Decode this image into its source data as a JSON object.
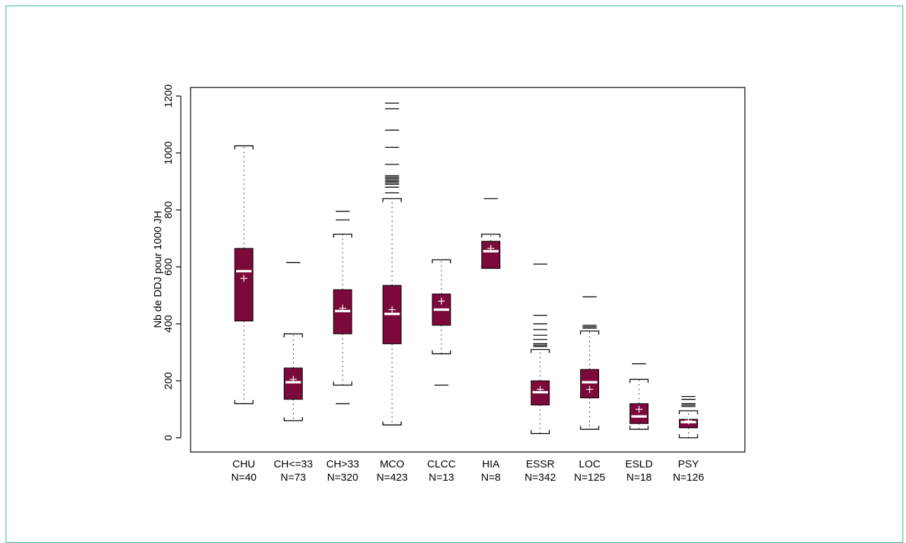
{
  "chart_data": {
    "type": "boxplot",
    "title": "",
    "xlabel": "",
    "ylabel": "Nb de DDJ pour 1000 JH",
    "ylim": [
      -50,
      1230
    ],
    "yticks": [
      0,
      200,
      400,
      600,
      800,
      1000,
      1200
    ],
    "grid": false,
    "box_color": "#7b0a3a",
    "marker_color": "#ffffff",
    "categories": [
      {
        "name": "CHU",
        "n_label": "N=40",
        "whisker_low": 120,
        "q1": 410,
        "median": 585,
        "q3": 665,
        "whisker_high": 1025,
        "mean": 560,
        "outliers": []
      },
      {
        "name": "CH<=33",
        "n_label": "N=73",
        "whisker_low": 60,
        "q1": 135,
        "median": 195,
        "q3": 245,
        "whisker_high": 365,
        "mean": 205,
        "outliers": [
          615
        ]
      },
      {
        "name": "CH>33",
        "n_label": "N=320",
        "whisker_low": 185,
        "q1": 365,
        "median": 445,
        "q3": 520,
        "whisker_high": 715,
        "mean": 455,
        "outliers": [
          120,
          765,
          795
        ]
      },
      {
        "name": "MCO",
        "n_label": "N=423",
        "whisker_low": 45,
        "q1": 330,
        "median": 435,
        "q3": 535,
        "whisker_high": 840,
        "mean": 450,
        "outliers": [
          860,
          880,
          890,
          895,
          900,
          905,
          910,
          915,
          920,
          960,
          1020,
          1080,
          1155,
          1175
        ]
      },
      {
        "name": "CLCC",
        "n_label": "N=13",
        "whisker_low": 295,
        "q1": 395,
        "median": 450,
        "q3": 505,
        "whisker_high": 625,
        "mean": 480,
        "outliers": [
          185
        ]
      },
      {
        "name": "HIA",
        "n_label": "N=8",
        "whisker_low": 595,
        "q1": 595,
        "median": 655,
        "q3": 690,
        "whisker_high": 715,
        "mean": 665,
        "outliers": [
          840
        ]
      },
      {
        "name": "ESSR",
        "n_label": "N=342",
        "whisker_low": 15,
        "q1": 115,
        "median": 160,
        "q3": 200,
        "whisker_high": 310,
        "mean": 170,
        "outliers": [
          320,
          325,
          330,
          345,
          360,
          380,
          400,
          430,
          610
        ]
      },
      {
        "name": "LOC",
        "n_label": "N=125",
        "whisker_low": 30,
        "q1": 140,
        "median": 195,
        "q3": 240,
        "whisker_high": 375,
        "mean": 170,
        "outliers": [
          385,
          390,
          395,
          495
        ]
      },
      {
        "name": "ESLD",
        "n_label": "N=18",
        "whisker_low": 30,
        "q1": 50,
        "median": 75,
        "q3": 120,
        "whisker_high": 205,
        "mean": 100,
        "outliers": [
          260
        ]
      },
      {
        "name": "PSY",
        "n_label": "N=126",
        "whisker_low": 0,
        "q1": 35,
        "median": 55,
        "q3": 65,
        "whisker_high": 95,
        "mean": 60,
        "outliers": [
          110,
          115,
          120,
          135,
          145
        ]
      }
    ]
  }
}
